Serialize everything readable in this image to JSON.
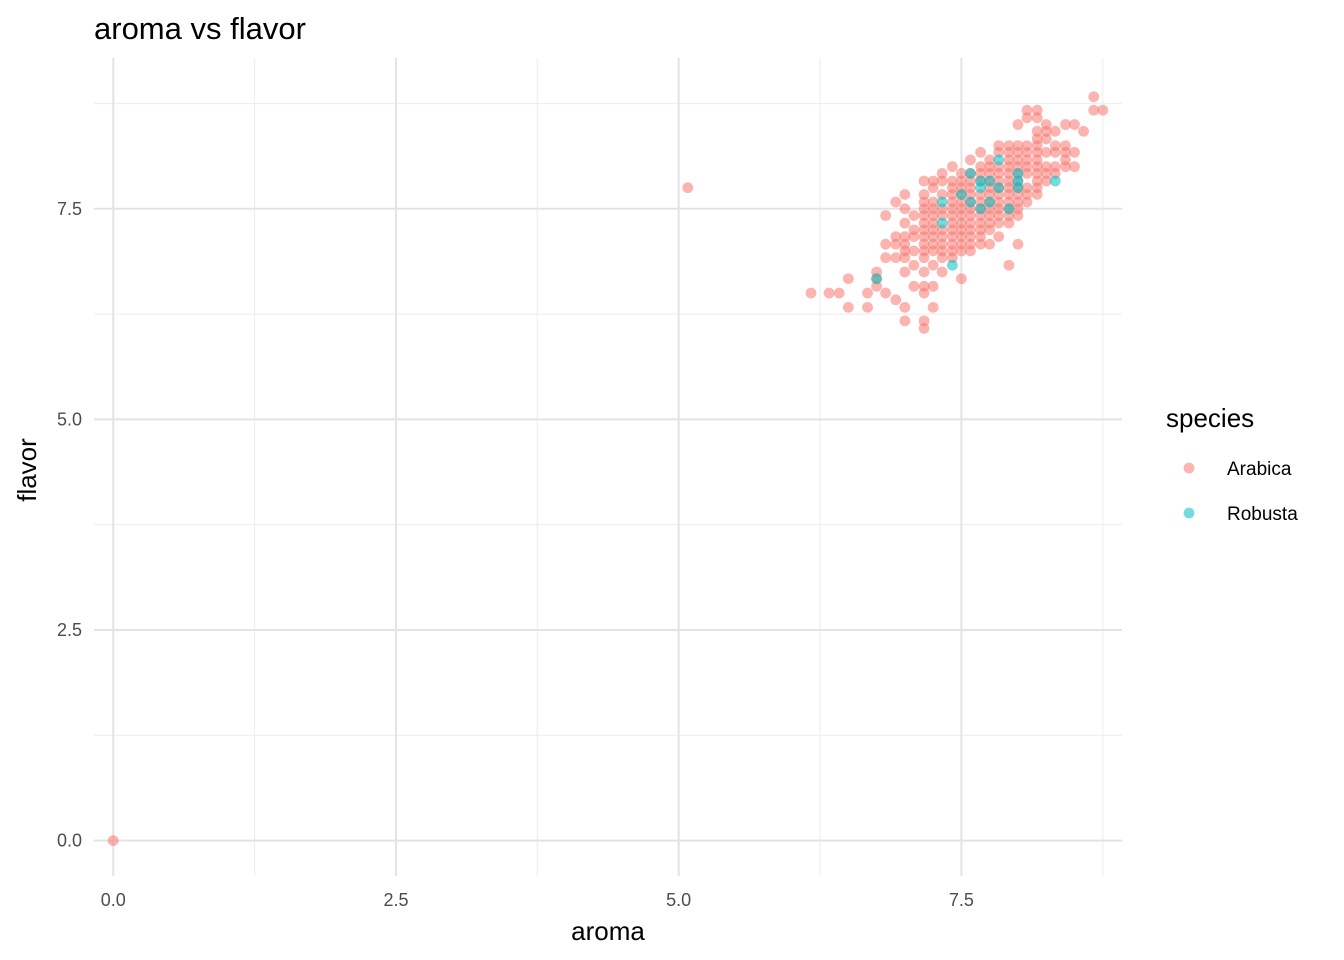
{
  "chart_data": {
    "type": "scatter",
    "title": "aroma vs flavor",
    "xlabel": "aroma",
    "ylabel": "flavor",
    "xlim": [
      -0.17,
      8.92
    ],
    "ylim": [
      -0.42,
      9.29
    ],
    "x_ticks": [
      0.0,
      2.5,
      5.0,
      7.5
    ],
    "y_ticks": [
      0.0,
      2.5,
      5.0,
      7.5
    ],
    "x_tick_labels": [
      "0.0",
      "2.5",
      "5.0",
      "7.5"
    ],
    "y_tick_labels": [
      "0.0",
      "2.5",
      "5.0",
      "7.5"
    ],
    "grid": true,
    "legend": {
      "title": "species",
      "position": "right"
    },
    "series": [
      {
        "name": "Arabica",
        "color": "#F8766D",
        "points": [
          [
            0.0,
            0.0
          ],
          [
            5.08,
            7.75
          ],
          [
            6.17,
            6.5
          ],
          [
            6.33,
            6.5
          ],
          [
            6.42,
            6.5
          ],
          [
            6.5,
            6.33
          ],
          [
            6.5,
            6.67
          ],
          [
            6.67,
            6.33
          ],
          [
            6.67,
            6.5
          ],
          [
            6.75,
            6.58
          ],
          [
            6.75,
            6.67
          ],
          [
            6.75,
            6.75
          ],
          [
            6.83,
            6.5
          ],
          [
            6.83,
            6.92
          ],
          [
            6.83,
            7.08
          ],
          [
            6.83,
            7.42
          ],
          [
            6.92,
            6.42
          ],
          [
            6.92,
            6.92
          ],
          [
            6.92,
            7.08
          ],
          [
            6.92,
            7.17
          ],
          [
            6.92,
            7.58
          ],
          [
            7.0,
            6.17
          ],
          [
            7.0,
            6.33
          ],
          [
            7.0,
            6.75
          ],
          [
            7.0,
            6.92
          ],
          [
            7.0,
            7.0
          ],
          [
            7.0,
            7.08
          ],
          [
            7.0,
            7.17
          ],
          [
            7.0,
            7.33
          ],
          [
            7.0,
            7.5
          ],
          [
            7.0,
            7.67
          ],
          [
            7.08,
            6.58
          ],
          [
            7.08,
            6.83
          ],
          [
            7.08,
            7.0
          ],
          [
            7.08,
            7.17
          ],
          [
            7.08,
            7.25
          ],
          [
            7.08,
            7.42
          ],
          [
            7.17,
            6.08
          ],
          [
            7.17,
            6.17
          ],
          [
            7.17,
            6.5
          ],
          [
            7.17,
            6.58
          ],
          [
            7.17,
            6.75
          ],
          [
            7.17,
            6.92
          ],
          [
            7.17,
            7.0
          ],
          [
            7.17,
            7.08
          ],
          [
            7.17,
            7.17
          ],
          [
            7.17,
            7.25
          ],
          [
            7.17,
            7.33
          ],
          [
            7.17,
            7.42
          ],
          [
            7.17,
            7.5
          ],
          [
            7.17,
            7.58
          ],
          [
            7.17,
            7.67
          ],
          [
            7.17,
            7.83
          ],
          [
            7.25,
            6.33
          ],
          [
            7.25,
            6.58
          ],
          [
            7.25,
            6.83
          ],
          [
            7.25,
            7.0
          ],
          [
            7.25,
            7.08
          ],
          [
            7.25,
            7.17
          ],
          [
            7.25,
            7.25
          ],
          [
            7.25,
            7.33
          ],
          [
            7.25,
            7.42
          ],
          [
            7.25,
            7.5
          ],
          [
            7.25,
            7.58
          ],
          [
            7.25,
            7.75
          ],
          [
            7.25,
            7.83
          ],
          [
            7.33,
            6.75
          ],
          [
            7.33,
            6.92
          ],
          [
            7.33,
            7.0
          ],
          [
            7.33,
            7.08
          ],
          [
            7.33,
            7.17
          ],
          [
            7.33,
            7.25
          ],
          [
            7.33,
            7.42
          ],
          [
            7.33,
            7.5
          ],
          [
            7.33,
            7.67
          ],
          [
            7.33,
            7.83
          ],
          [
            7.33,
            7.92
          ],
          [
            7.42,
            6.92
          ],
          [
            7.42,
            7.0
          ],
          [
            7.42,
            7.08
          ],
          [
            7.42,
            7.17
          ],
          [
            7.42,
            7.25
          ],
          [
            7.42,
            7.33
          ],
          [
            7.42,
            7.42
          ],
          [
            7.42,
            7.5
          ],
          [
            7.42,
            7.58
          ],
          [
            7.42,
            7.67
          ],
          [
            7.42,
            7.75
          ],
          [
            7.42,
            7.83
          ],
          [
            7.42,
            8.0
          ],
          [
            7.5,
            6.67
          ],
          [
            7.5,
            7.0
          ],
          [
            7.5,
            7.08
          ],
          [
            7.5,
            7.17
          ],
          [
            7.5,
            7.25
          ],
          [
            7.5,
            7.33
          ],
          [
            7.5,
            7.42
          ],
          [
            7.5,
            7.5
          ],
          [
            7.5,
            7.58
          ],
          [
            7.5,
            7.67
          ],
          [
            7.5,
            7.75
          ],
          [
            7.5,
            7.83
          ],
          [
            7.5,
            7.92
          ],
          [
            7.58,
            7.0
          ],
          [
            7.58,
            7.08
          ],
          [
            7.58,
            7.17
          ],
          [
            7.58,
            7.25
          ],
          [
            7.58,
            7.33
          ],
          [
            7.58,
            7.42
          ],
          [
            7.58,
            7.5
          ],
          [
            7.58,
            7.58
          ],
          [
            7.58,
            7.67
          ],
          [
            7.58,
            7.75
          ],
          [
            7.58,
            7.83
          ],
          [
            7.58,
            7.92
          ],
          [
            7.58,
            8.08
          ],
          [
            7.67,
            7.08
          ],
          [
            7.67,
            7.17
          ],
          [
            7.67,
            7.25
          ],
          [
            7.67,
            7.33
          ],
          [
            7.67,
            7.42
          ],
          [
            7.67,
            7.5
          ],
          [
            7.67,
            7.58
          ],
          [
            7.67,
            7.67
          ],
          [
            7.67,
            7.83
          ],
          [
            7.67,
            7.92
          ],
          [
            7.67,
            8.0
          ],
          [
            7.67,
            8.17
          ],
          [
            7.75,
            7.08
          ],
          [
            7.75,
            7.25
          ],
          [
            7.75,
            7.33
          ],
          [
            7.75,
            7.42
          ],
          [
            7.75,
            7.5
          ],
          [
            7.75,
            7.58
          ],
          [
            7.75,
            7.67
          ],
          [
            7.75,
            7.75
          ],
          [
            7.75,
            7.83
          ],
          [
            7.75,
            7.92
          ],
          [
            7.75,
            8.0
          ],
          [
            7.75,
            8.08
          ],
          [
            7.83,
            7.17
          ],
          [
            7.83,
            7.33
          ],
          [
            7.83,
            7.42
          ],
          [
            7.83,
            7.5
          ],
          [
            7.83,
            7.58
          ],
          [
            7.83,
            7.67
          ],
          [
            7.83,
            7.75
          ],
          [
            7.83,
            7.83
          ],
          [
            7.83,
            7.92
          ],
          [
            7.83,
            8.0
          ],
          [
            7.83,
            8.17
          ],
          [
            7.83,
            8.25
          ],
          [
            7.92,
            6.83
          ],
          [
            7.92,
            7.33
          ],
          [
            7.92,
            7.42
          ],
          [
            7.92,
            7.5
          ],
          [
            7.92,
            7.58
          ],
          [
            7.92,
            7.67
          ],
          [
            7.92,
            7.75
          ],
          [
            7.92,
            7.83
          ],
          [
            7.92,
            7.92
          ],
          [
            7.92,
            8.0
          ],
          [
            7.92,
            8.08
          ],
          [
            7.92,
            8.17
          ],
          [
            7.92,
            8.25
          ],
          [
            8.0,
            7.08
          ],
          [
            8.0,
            7.42
          ],
          [
            8.0,
            7.5
          ],
          [
            8.0,
            7.58
          ],
          [
            8.0,
            7.67
          ],
          [
            8.0,
            7.75
          ],
          [
            8.0,
            7.83
          ],
          [
            8.0,
            7.92
          ],
          [
            8.0,
            8.0
          ],
          [
            8.0,
            8.08
          ],
          [
            8.0,
            8.17
          ],
          [
            8.0,
            8.25
          ],
          [
            8.0,
            8.5
          ],
          [
            8.08,
            7.58
          ],
          [
            8.08,
            7.67
          ],
          [
            8.08,
            7.75
          ],
          [
            8.08,
            7.92
          ],
          [
            8.08,
            8.0
          ],
          [
            8.08,
            8.08
          ],
          [
            8.08,
            8.17
          ],
          [
            8.08,
            8.25
          ],
          [
            8.08,
            8.58
          ],
          [
            8.08,
            8.67
          ],
          [
            8.17,
            7.67
          ],
          [
            8.17,
            7.75
          ],
          [
            8.17,
            7.83
          ],
          [
            8.17,
            7.92
          ],
          [
            8.17,
            8.0
          ],
          [
            8.17,
            8.08
          ],
          [
            8.17,
            8.17
          ],
          [
            8.17,
            8.25
          ],
          [
            8.17,
            8.33
          ],
          [
            8.17,
            8.42
          ],
          [
            8.17,
            8.58
          ],
          [
            8.17,
            8.67
          ],
          [
            8.25,
            7.83
          ],
          [
            8.25,
            7.92
          ],
          [
            8.25,
            8.0
          ],
          [
            8.25,
            8.17
          ],
          [
            8.25,
            8.33
          ],
          [
            8.25,
            8.42
          ],
          [
            8.25,
            8.5
          ],
          [
            8.33,
            7.92
          ],
          [
            8.33,
            8.0
          ],
          [
            8.33,
            8.17
          ],
          [
            8.33,
            8.25
          ],
          [
            8.33,
            8.42
          ],
          [
            8.42,
            8.0
          ],
          [
            8.42,
            8.08
          ],
          [
            8.42,
            8.17
          ],
          [
            8.42,
            8.25
          ],
          [
            8.42,
            8.5
          ],
          [
            8.5,
            8.0
          ],
          [
            8.5,
            8.17
          ],
          [
            8.5,
            8.5
          ],
          [
            8.58,
            8.42
          ],
          [
            8.67,
            8.67
          ],
          [
            8.67,
            8.83
          ],
          [
            8.75,
            8.67
          ]
        ]
      },
      {
        "name": "Robusta",
        "color": "#00BFC4",
        "points": [
          [
            6.75,
            6.67
          ],
          [
            7.33,
            7.33
          ],
          [
            7.33,
            7.58
          ],
          [
            7.42,
            6.83
          ],
          [
            7.5,
            7.67
          ],
          [
            7.58,
            7.58
          ],
          [
            7.58,
            7.92
          ],
          [
            7.67,
            7.75
          ],
          [
            7.67,
            7.83
          ],
          [
            7.67,
            7.5
          ],
          [
            7.75,
            7.58
          ],
          [
            7.75,
            7.83
          ],
          [
            7.83,
            8.08
          ],
          [
            7.83,
            7.75
          ],
          [
            7.92,
            7.5
          ],
          [
            8.0,
            7.75
          ],
          [
            8.0,
            7.92
          ],
          [
            8.0,
            7.83
          ],
          [
            8.33,
            7.83
          ]
        ]
      }
    ]
  }
}
